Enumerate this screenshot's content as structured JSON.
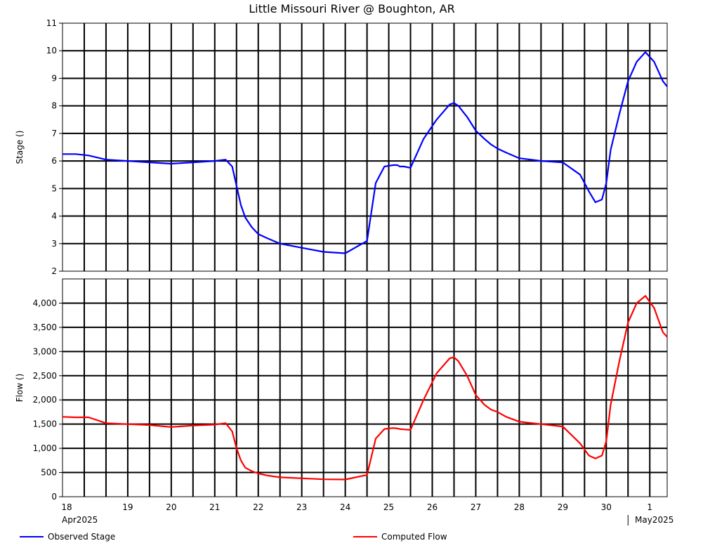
{
  "chart_data": {
    "title": "Little Missouri River @ Boughton, AR",
    "type": "line",
    "x_tick_labels": [
      "18",
      "19",
      "20",
      "21",
      "22",
      "23",
      "24",
      "25",
      "26",
      "27",
      "28",
      "29",
      "30",
      "1"
    ],
    "month_labels": [
      "Apr2025",
      "May2025"
    ],
    "x_range_days": [
      "2025-04-18",
      "2025-05-01"
    ],
    "panels": [
      {
        "name": "stage",
        "ylabel": "Stage ()",
        "ylim": [
          2,
          11
        ],
        "yticks": [
          2,
          3,
          4,
          5,
          6,
          7,
          8,
          9,
          10,
          11
        ],
        "ytick_labels": [
          "2",
          "3",
          "4",
          "5",
          "6",
          "7",
          "8",
          "9",
          "10",
          "11"
        ],
        "series": [
          {
            "name": "Observed Stage",
            "color": "#0000ff",
            "x": [
              0.0,
              0.3,
              0.6,
              1.0,
              1.5,
              2.0,
              2.5,
              3.0,
              3.5,
              3.75,
              3.9,
              4.0,
              4.1,
              4.2,
              4.35,
              4.5,
              4.7,
              5.0,
              5.5,
              6.0,
              6.5,
              7.0,
              7.2,
              7.4,
              7.6,
              7.7,
              7.75,
              7.85,
              8.0,
              8.3,
              8.6,
              8.9,
              9.0,
              9.1,
              9.3,
              9.5,
              9.7,
              9.85,
              10.0,
              10.2,
              10.5,
              11.0,
              11.5,
              11.9,
              12.1,
              12.25,
              12.4,
              12.5,
              12.6,
              12.8,
              13.0,
              13.2,
              13.4,
              13.6,
              13.8,
              13.9
            ],
            "y": [
              6.25,
              6.25,
              6.2,
              6.05,
              6.0,
              5.95,
              5.9,
              5.95,
              6.0,
              6.05,
              5.8,
              5.1,
              4.4,
              3.95,
              3.6,
              3.35,
              3.2,
              3.0,
              2.85,
              2.7,
              2.65,
              3.1,
              5.2,
              5.8,
              5.85,
              5.85,
              5.8,
              5.8,
              5.75,
              6.8,
              7.5,
              8.05,
              8.1,
              8.0,
              7.6,
              7.1,
              6.8,
              6.6,
              6.45,
              6.3,
              6.1,
              6.0,
              5.95,
              5.5,
              4.9,
              4.5,
              4.6,
              5.2,
              6.4,
              7.7,
              8.9,
              9.6,
              9.95,
              9.6,
              8.9,
              8.7
            ]
          }
        ]
      },
      {
        "name": "flow",
        "ylabel": "Flow ()",
        "ylim": [
          0,
          4500
        ],
        "yticks": [
          0,
          500,
          1000,
          1500,
          2000,
          2500,
          3000,
          3500,
          4000
        ],
        "ytick_labels": [
          "0",
          "500",
          "1,000",
          "1,500",
          "2,000",
          "2,500",
          "3,000",
          "3,500",
          "4,000"
        ],
        "series": [
          {
            "name": "Computed Flow",
            "color": "#ff0000",
            "x": [
              0.0,
              0.3,
              0.6,
              1.0,
              1.5,
              2.0,
              2.5,
              3.0,
              3.5,
              3.75,
              3.9,
              4.0,
              4.1,
              4.2,
              4.35,
              4.5,
              4.7,
              5.0,
              5.5,
              6.0,
              6.5,
              7.0,
              7.2,
              7.4,
              7.6,
              7.7,
              7.75,
              7.85,
              8.0,
              8.3,
              8.6,
              8.9,
              9.0,
              9.1,
              9.3,
              9.5,
              9.7,
              9.85,
              10.0,
              10.2,
              10.5,
              11.0,
              11.5,
              11.9,
              12.1,
              12.25,
              12.4,
              12.5,
              12.6,
              12.8,
              13.0,
              13.2,
              13.4,
              13.6,
              13.8,
              13.9
            ],
            "y": [
              1650,
              1640,
              1640,
              1520,
              1500,
              1480,
              1440,
              1470,
              1490,
              1520,
              1350,
              1000,
              750,
              600,
              530,
              480,
              440,
              400,
              380,
              360,
              355,
              450,
              1200,
              1400,
              1420,
              1410,
              1400,
              1390,
              1380,
              2000,
              2550,
              2860,
              2880,
              2800,
              2500,
              2100,
              1900,
              1800,
              1750,
              1650,
              1550,
              1500,
              1450,
              1100,
              850,
              790,
              850,
              1150,
              1900,
              2800,
              3600,
              4000,
              4150,
              3900,
              3400,
              3300
            ]
          }
        ]
      }
    ],
    "legend_position": "bottom",
    "grid": true
  }
}
